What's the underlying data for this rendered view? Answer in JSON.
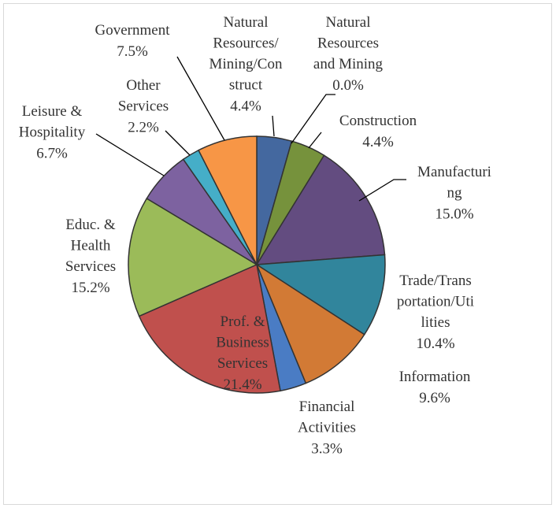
{
  "chart_data": {
    "type": "pie",
    "categories": [
      "Natural\nResources/\nMining/Con\nstruct",
      "Natural\nResources\nand Mining",
      "Construction",
      "Manufacturi\nng",
      "Trade/Trans\nportation/Uti\nlities",
      "Information",
      "Financial\nActivities",
      "Prof. &\nBusiness\nServices",
      "Educ. &\nHealth\nServices",
      "Leisure &\nHospitality",
      "Other\nServices",
      "Government"
    ],
    "values": [
      4.4,
      0,
      4.4,
      15,
      10.4,
      9.6,
      3.3,
      21.4,
      15.2,
      6.7,
      2.2,
      7.5
    ],
    "value_labels": [
      "4.4%",
      "0.0%",
      "4.4%",
      "15.0%",
      "10.4%",
      "9.6%",
      "3.3%",
      "21.4%",
      "15.2%",
      "6.7%",
      "2.2%",
      "7.5%"
    ],
    "colors": [
      "#44689f",
      "#4f81bd",
      "#76923c",
      "#634c80",
      "#31859c",
      "#d27a35",
      "#4a7cc4",
      "#c0504d",
      "#9bbb59",
      "#7d62a0",
      "#45aec8",
      "#f79646"
    ]
  }
}
